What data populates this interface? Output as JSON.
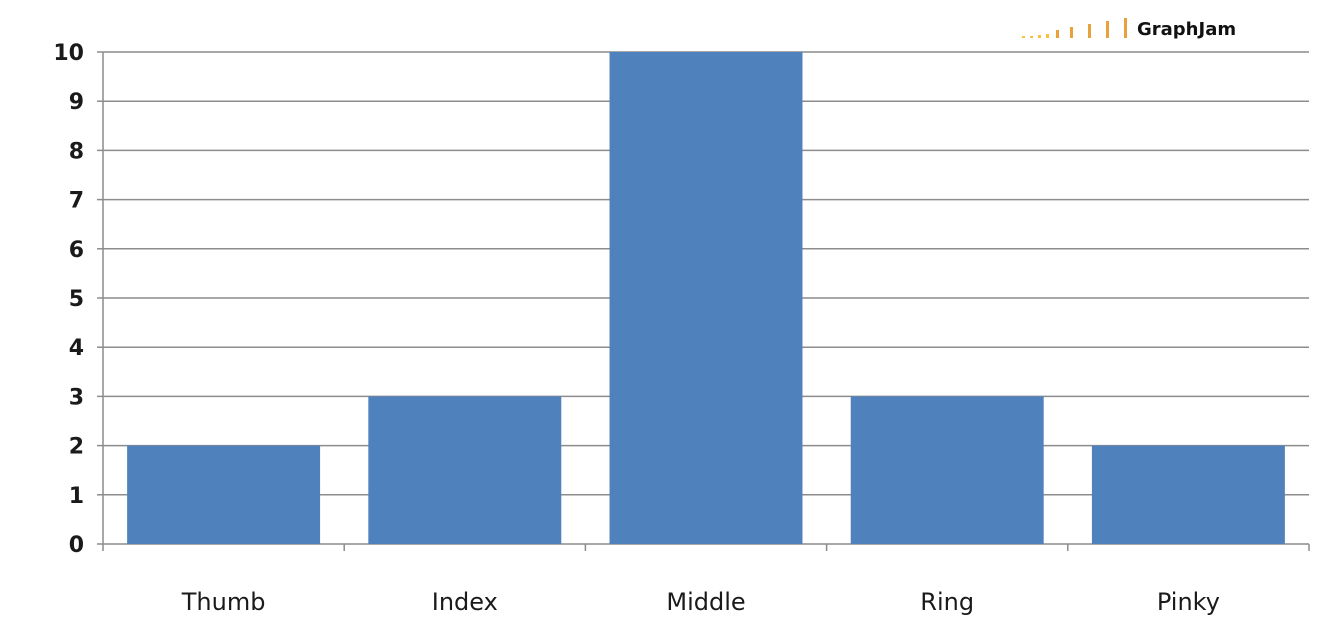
{
  "chart_data": {
    "type": "bar",
    "title": "",
    "xlabel": "",
    "ylabel": "",
    "categories": [
      "Thumb",
      "Index",
      "Middle",
      "Ring",
      "Pinky"
    ],
    "values": [
      2,
      3,
      10,
      3,
      2
    ],
    "ylim": [
      0,
      10
    ],
    "yticks": [
      "0",
      "1",
      "2",
      "3",
      "4",
      "5",
      "6",
      "7",
      "8",
      "9",
      "10"
    ],
    "grid": true,
    "legend": "none",
    "bar_color": "#4f81bd"
  },
  "watermark": {
    "text": "GraphJam",
    "colors": [
      "#f5c242",
      "#e9a13b"
    ]
  }
}
